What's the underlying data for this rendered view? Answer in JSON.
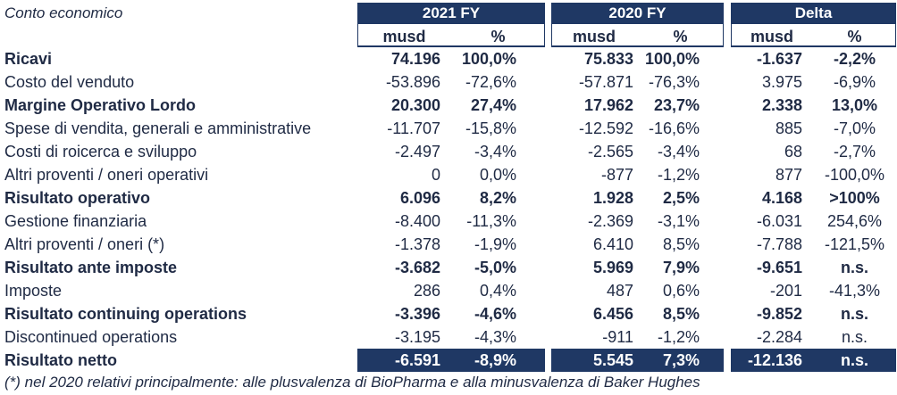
{
  "title": "Conto economico",
  "groups": [
    {
      "label": "2021 FY",
      "sub": [
        "musd",
        "%"
      ]
    },
    {
      "label": "2020 FY",
      "sub": [
        "musd",
        "%"
      ]
    },
    {
      "label": "Delta",
      "sub": [
        "musd",
        "%"
      ]
    }
  ],
  "rows": [
    {
      "label": "Ricavi",
      "bold": true,
      "values": [
        "74.196",
        "100,0%",
        "75.833",
        "100,0%",
        "-1.637",
        "-2,2%"
      ]
    },
    {
      "label": "Costo del venduto",
      "bold": false,
      "values": [
        "-53.896",
        "-72,6%",
        "-57.871",
        "-76,3%",
        "3.975",
        "-6,9%"
      ]
    },
    {
      "label": "Margine Operativo Lordo",
      "bold": true,
      "values": [
        "20.300",
        "27,4%",
        "17.962",
        "23,7%",
        "2.338",
        "13,0%"
      ]
    },
    {
      "label": "Spese di vendita, generali e amministrative",
      "bold": false,
      "values": [
        "-11.707",
        "-15,8%",
        "-12.592",
        "-16,6%",
        "885",
        "-7,0%"
      ]
    },
    {
      "label": "Costi di roicerca e sviluppo",
      "bold": false,
      "values": [
        "-2.497",
        "-3,4%",
        "-2.565",
        "-3,4%",
        "68",
        "-2,7%"
      ]
    },
    {
      "label": "Altri proventi / oneri operativi",
      "bold": false,
      "values": [
        "0",
        "0,0%",
        "-877",
        "-1,2%",
        "877",
        "-100,0%"
      ]
    },
    {
      "label": "Risultato operativo",
      "bold": true,
      "values": [
        "6.096",
        "8,2%",
        "1.928",
        "2,5%",
        "4.168",
        ">100%"
      ]
    },
    {
      "label": "Gestione finanziaria",
      "bold": false,
      "values": [
        "-8.400",
        "-11,3%",
        "-2.369",
        "-3,1%",
        "-6.031",
        "254,6%"
      ]
    },
    {
      "label": "Altri proventi / oneri (*)",
      "bold": false,
      "values": [
        "-1.378",
        "-1,9%",
        "6.410",
        "8,5%",
        "-7.788",
        "-121,5%"
      ]
    },
    {
      "label": "Risultato ante imposte",
      "bold": true,
      "values": [
        "-3.682",
        "-5,0%",
        "5.969",
        "7,9%",
        "-9.651",
        "n.s."
      ]
    },
    {
      "label": "Imposte",
      "bold": false,
      "values": [
        "286",
        "0,4%",
        "487",
        "0,6%",
        "-201",
        "-41,3%"
      ]
    },
    {
      "label": "Risultato continuing operations",
      "bold": true,
      "values": [
        "-3.396",
        "-4,6%",
        "6.456",
        "8,5%",
        "-9.852",
        "n.s."
      ]
    },
    {
      "label": "Discontinued operations",
      "bold": false,
      "values": [
        "-3.195",
        "-4,3%",
        "-911",
        "-1,2%",
        "-2.284",
        "n.s."
      ]
    },
    {
      "label": "Risultato netto",
      "bold": true,
      "net": true,
      "values": [
        "-6.591",
        "-8,9%",
        "5.545",
        "7,3%",
        "-12.136",
        "n.s."
      ]
    }
  ],
  "footnote": "(*) nel 2020 relativi principalmente: alle plusvalenza di BioPharma e alla minusvalenza di Baker Hughes",
  "colors": {
    "header_bg": "#1f3864",
    "text": "#1f2a44"
  }
}
